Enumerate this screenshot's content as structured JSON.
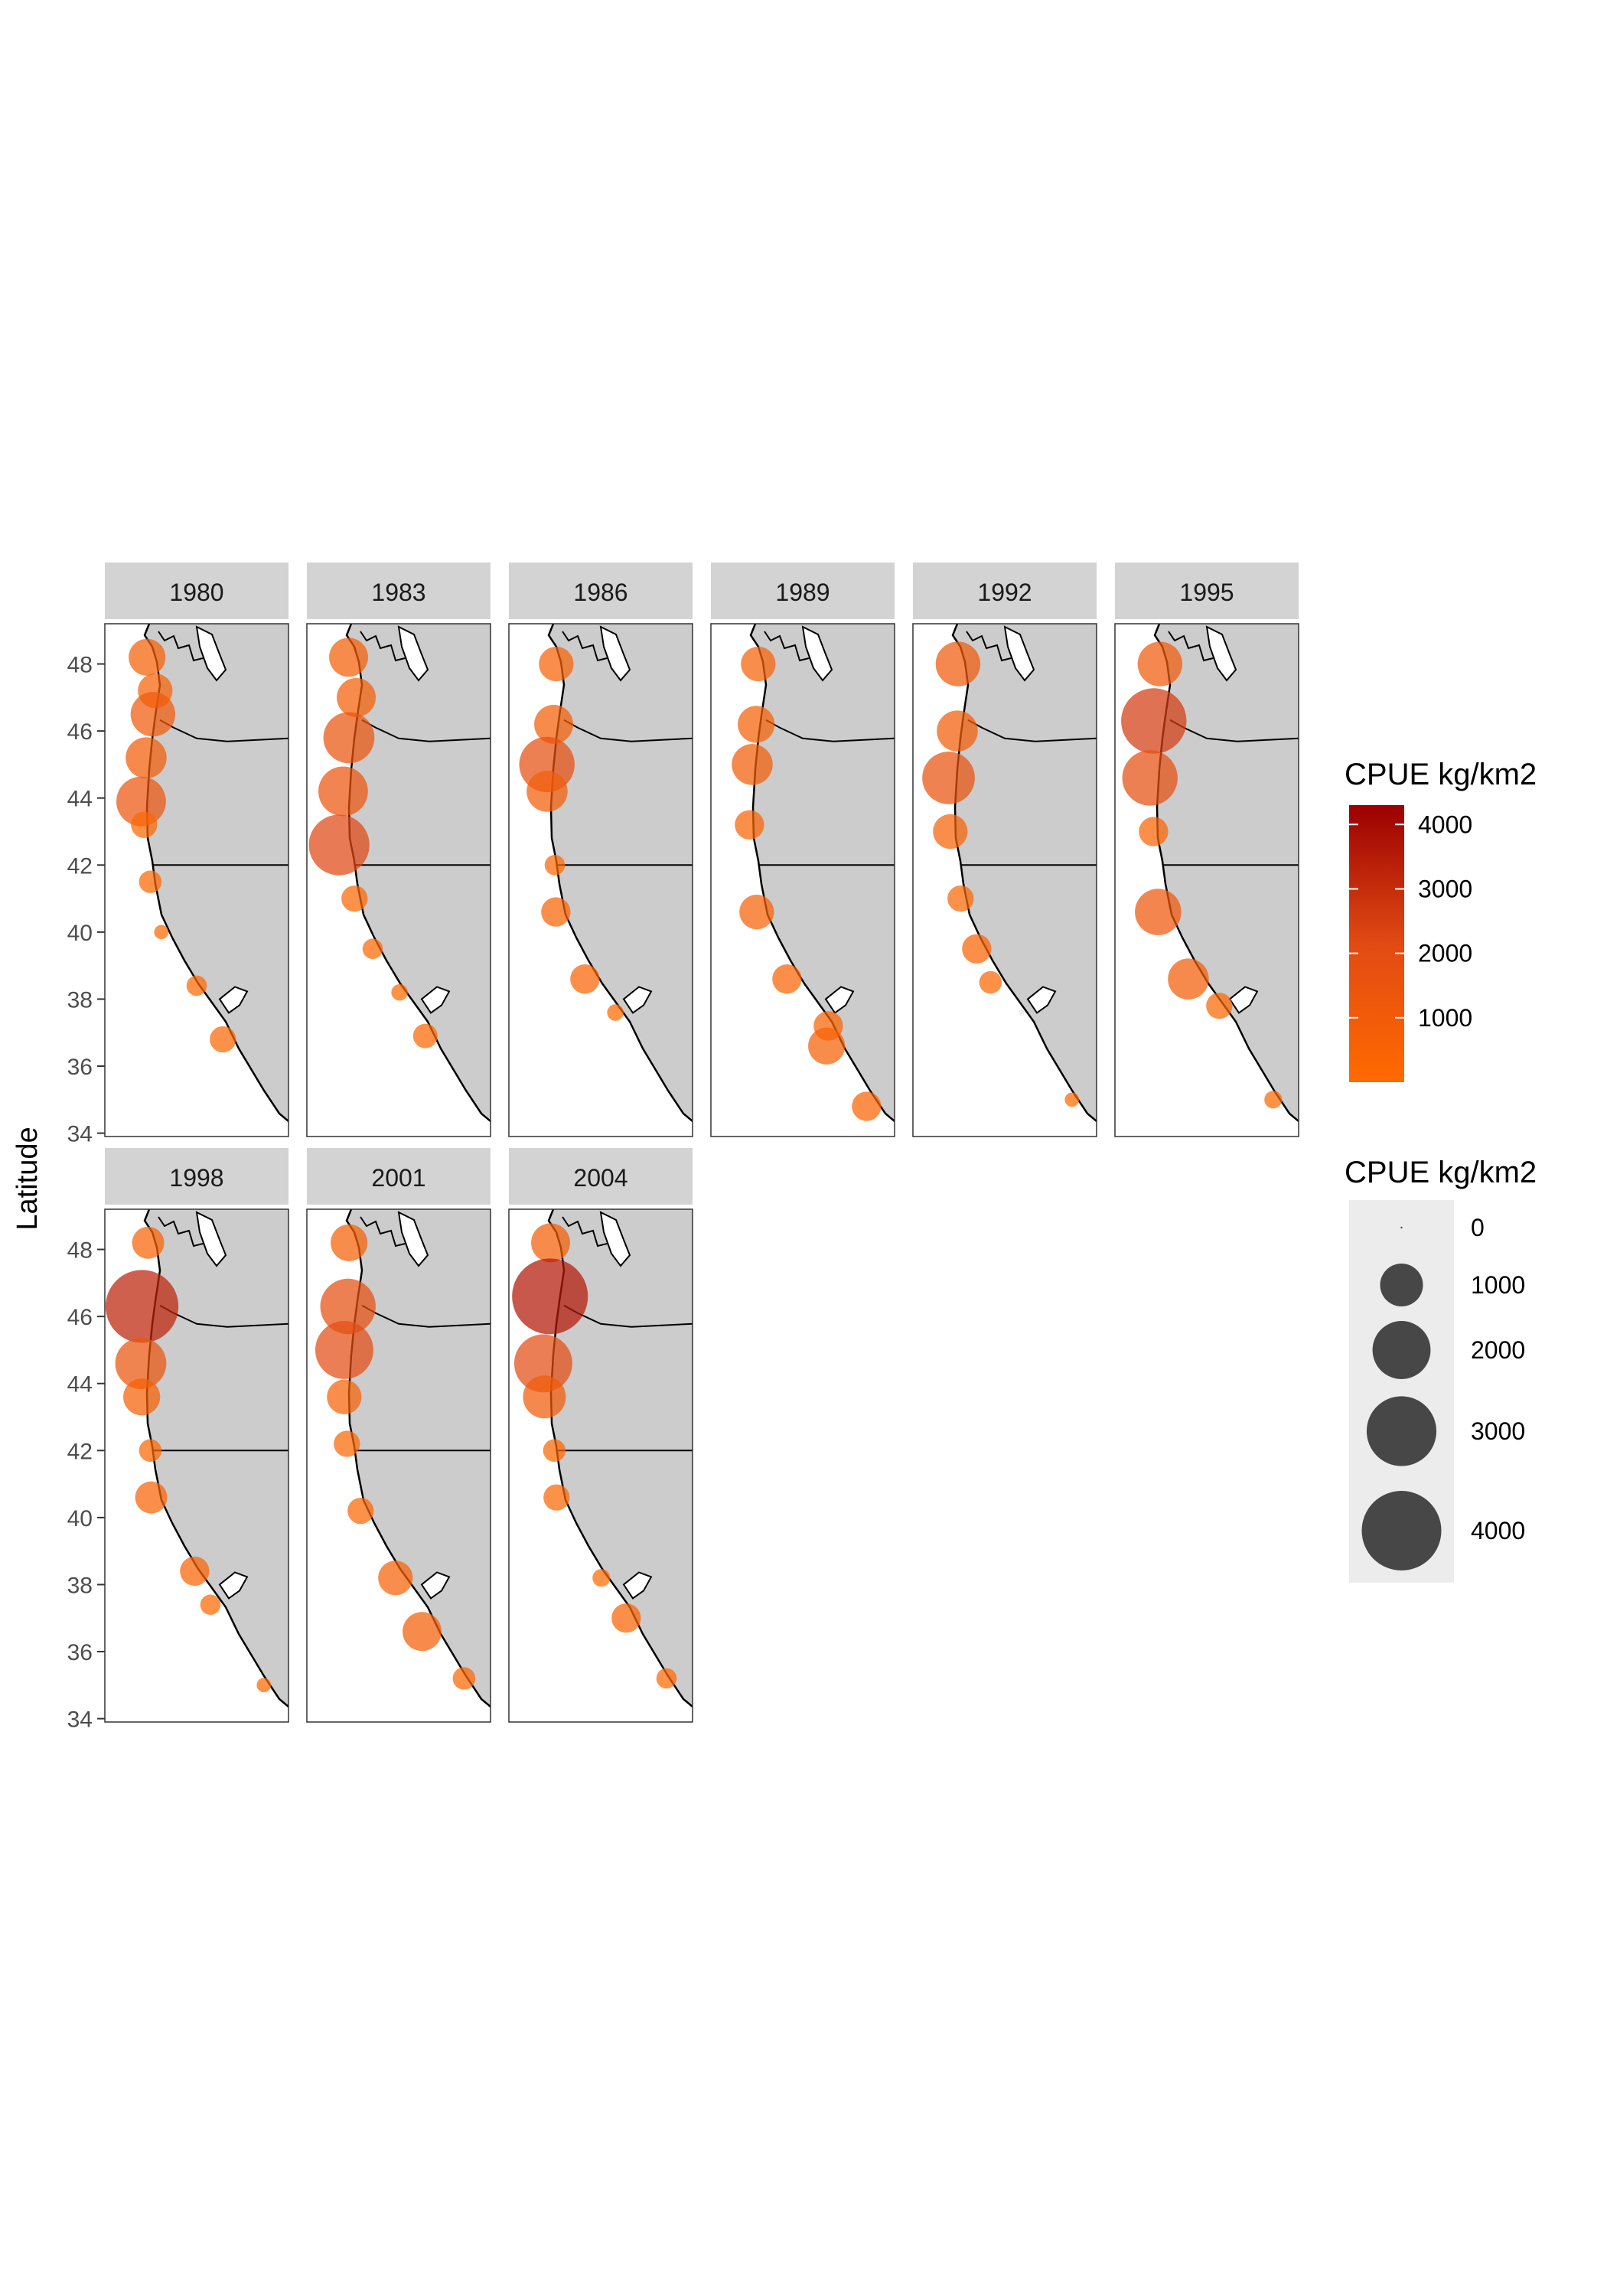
{
  "chart_data": {
    "type": "scatter",
    "facet_by": "year",
    "facets": [
      {
        "year": "1980",
        "points": [
          {
            "lat": 48.2,
            "cpue": 700
          },
          {
            "lat": 47.2,
            "cpue": 600
          },
          {
            "lat": 46.5,
            "cpue": 1100
          },
          {
            "lat": 45.2,
            "cpue": 900
          },
          {
            "lat": 43.9,
            "cpue": 1400
          },
          {
            "lat": 43.2,
            "cpue": 300
          },
          {
            "lat": 41.5,
            "cpue": 200
          },
          {
            "lat": 40.0,
            "cpue": 50
          },
          {
            "lat": 38.4,
            "cpue": 150
          },
          {
            "lat": 36.8,
            "cpue": 300
          }
        ]
      },
      {
        "year": "1983",
        "points": [
          {
            "lat": 48.2,
            "cpue": 800
          },
          {
            "lat": 47.0,
            "cpue": 800
          },
          {
            "lat": 45.8,
            "cpue": 1500
          },
          {
            "lat": 44.2,
            "cpue": 1400
          },
          {
            "lat": 42.6,
            "cpue": 2200
          },
          {
            "lat": 41.0,
            "cpue": 300
          },
          {
            "lat": 39.5,
            "cpue": 150
          },
          {
            "lat": 38.2,
            "cpue": 80
          },
          {
            "lat": 36.9,
            "cpue": 250
          }
        ]
      },
      {
        "year": "1986",
        "points": [
          {
            "lat": 48.0,
            "cpue": 600
          },
          {
            "lat": 46.2,
            "cpue": 800
          },
          {
            "lat": 45.0,
            "cpue": 1800
          },
          {
            "lat": 44.2,
            "cpue": 900
          },
          {
            "lat": 42.0,
            "cpue": 150
          },
          {
            "lat": 40.6,
            "cpue": 400
          },
          {
            "lat": 38.6,
            "cpue": 400
          },
          {
            "lat": 37.6,
            "cpue": 80
          }
        ]
      },
      {
        "year": "1989",
        "points": [
          {
            "lat": 48.0,
            "cpue": 600
          },
          {
            "lat": 46.2,
            "cpue": 700
          },
          {
            "lat": 45.0,
            "cpue": 900
          },
          {
            "lat": 43.2,
            "cpue": 400
          },
          {
            "lat": 40.6,
            "cpue": 600
          },
          {
            "lat": 38.6,
            "cpue": 400
          },
          {
            "lat": 37.2,
            "cpue": 400
          },
          {
            "lat": 36.6,
            "cpue": 700
          },
          {
            "lat": 34.8,
            "cpue": 400
          }
        ]
      },
      {
        "year": "1992",
        "points": [
          {
            "lat": 48.0,
            "cpue": 1100
          },
          {
            "lat": 46.0,
            "cpue": 900
          },
          {
            "lat": 44.6,
            "cpue": 1600
          },
          {
            "lat": 43.0,
            "cpue": 600
          },
          {
            "lat": 41.0,
            "cpue": 300
          },
          {
            "lat": 39.5,
            "cpue": 400
          },
          {
            "lat": 38.5,
            "cpue": 200
          },
          {
            "lat": 37.6,
            "cpue": 0
          },
          {
            "lat": 35.0,
            "cpue": 50
          }
        ]
      },
      {
        "year": "1995",
        "points": [
          {
            "lat": 48.0,
            "cpue": 1100
          },
          {
            "lat": 46.3,
            "cpue": 2600
          },
          {
            "lat": 44.6,
            "cpue": 1800
          },
          {
            "lat": 43.0,
            "cpue": 400
          },
          {
            "lat": 40.6,
            "cpue": 1200
          },
          {
            "lat": 38.6,
            "cpue": 900
          },
          {
            "lat": 37.8,
            "cpue": 300
          },
          {
            "lat": 35.0,
            "cpue": 100
          }
        ]
      },
      {
        "year": "1998",
        "points": [
          {
            "lat": 48.2,
            "cpue": 500
          },
          {
            "lat": 46.3,
            "cpue": 3300
          },
          {
            "lat": 44.6,
            "cpue": 1500
          },
          {
            "lat": 43.6,
            "cpue": 700
          },
          {
            "lat": 42.0,
            "cpue": 200
          },
          {
            "lat": 40.6,
            "cpue": 500
          },
          {
            "lat": 38.4,
            "cpue": 400
          },
          {
            "lat": 37.4,
            "cpue": 150
          },
          {
            "lat": 35.0,
            "cpue": 50
          }
        ]
      },
      {
        "year": "2001",
        "points": [
          {
            "lat": 48.2,
            "cpue": 700
          },
          {
            "lat": 46.3,
            "cpue": 1800
          },
          {
            "lat": 45.0,
            "cpue": 2000
          },
          {
            "lat": 43.6,
            "cpue": 600
          },
          {
            "lat": 42.2,
            "cpue": 300
          },
          {
            "lat": 40.2,
            "cpue": 300
          },
          {
            "lat": 38.2,
            "cpue": 600
          },
          {
            "lat": 36.6,
            "cpue": 800
          },
          {
            "lat": 35.2,
            "cpue": 200
          }
        ]
      },
      {
        "year": "2004",
        "points": [
          {
            "lat": 48.2,
            "cpue": 800
          },
          {
            "lat": 46.6,
            "cpue": 3600
          },
          {
            "lat": 44.6,
            "cpue": 2000
          },
          {
            "lat": 43.6,
            "cpue": 1000
          },
          {
            "lat": 42.0,
            "cpue": 200
          },
          {
            "lat": 40.6,
            "cpue": 300
          },
          {
            "lat": 38.2,
            "cpue": 100
          },
          {
            "lat": 37.0,
            "cpue": 400
          },
          {
            "lat": 35.2,
            "cpue": 150
          }
        ]
      }
    ],
    "ylabel": "Latitude",
    "ylim": [
      33.9,
      49.2
    ],
    "yticks": [
      48,
      46,
      44,
      42,
      40,
      38,
      36,
      34
    ],
    "grid": false,
    "legend_position": "right",
    "legends": [
      {
        "type": "color",
        "title": "CPUE kg/km2",
        "breaks": [
          "4000",
          "3000",
          "2000",
          "1000"
        ],
        "limits": [
          0,
          4300
        ],
        "low_color": "#ff6a00",
        "mid_color": "#e14a13",
        "high_color": "#9b0000"
      },
      {
        "type": "size",
        "title": "CPUE kg/km2",
        "breaks": [
          "0",
          "1000",
          "2000",
          "3000",
          "4000"
        ]
      }
    ]
  },
  "colors": {
    "land": "#cccccc",
    "strip": "#d3d3d3",
    "legend_key_bg": "#ececec",
    "size_key": "#474747"
  }
}
